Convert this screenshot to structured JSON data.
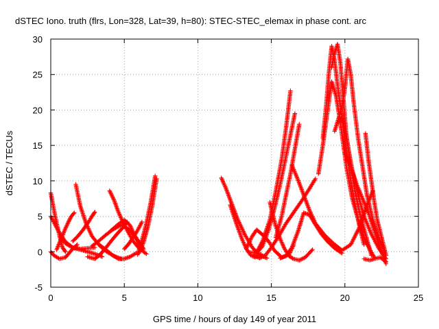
{
  "chart_data": {
    "type": "scatter",
    "title": "dSTEC Iono. truth (flrs, Lon=328, Lat=39, h=80): STEC-STEC_elemax in phase cont. arc",
    "xlabel": "GPS time / hours of day 149 of year 2011",
    "ylabel": "dSTEC  / TECUs",
    "xlim": [
      0,
      25
    ],
    "ylim": [
      -5,
      30
    ],
    "xticks": [
      0,
      5,
      10,
      15,
      20,
      25
    ],
    "yticks": [
      -5,
      0,
      5,
      10,
      15,
      20,
      25,
      30
    ],
    "grid": true,
    "legend": "none",
    "marker": "+",
    "color": "#ff0000",
    "series": [
      {
        "x": [
          0.0,
          0.3,
          0.6,
          0.8,
          1.0
        ],
        "y": [
          8.3,
          5.0,
          2.2,
          0.6,
          0.0
        ]
      },
      {
        "x": [
          0.0,
          0.5,
          1.0,
          1.5,
          2.0,
          2.5,
          3.0
        ],
        "y": [
          5.0,
          3.0,
          1.4,
          0.6,
          0.4,
          0.5,
          0.6
        ]
      },
      {
        "x": [
          0.0,
          0.2,
          0.6,
          1.0,
          1.4,
          1.8
        ],
        "y": [
          0.0,
          -0.5,
          -1.0,
          -0.8,
          0.2,
          1.0
        ]
      },
      {
        "x": [
          0.4,
          0.7,
          1.0,
          1.2,
          1.4,
          1.6
        ],
        "y": [
          0.3,
          1.8,
          3.3,
          4.2,
          5.0,
          5.5
        ]
      },
      {
        "x": [
          0.7,
          1.0,
          1.3,
          1.6,
          2.0,
          2.5,
          3.0,
          3.5
        ],
        "y": [
          2.0,
          1.2,
          0.8,
          0.5,
          0.3,
          0.0,
          -0.3,
          -0.7
        ]
      },
      {
        "x": [
          1.7,
          2.0,
          2.4,
          2.8,
          3.3,
          3.8,
          4.3,
          4.8
        ],
        "y": [
          9.5,
          6.5,
          4.0,
          2.2,
          0.9,
          0.0,
          -0.6,
          -1.0
        ]
      },
      {
        "x": [
          1.5,
          1.8,
          2.2,
          2.6,
          2.8,
          3.0
        ],
        "y": [
          1.5,
          2.1,
          3.1,
          4.3,
          5.0,
          5.6
        ]
      },
      {
        "x": [
          2.5,
          3.0,
          3.4,
          3.8,
          4.1,
          4.5,
          4.9,
          5.2
        ],
        "y": [
          -0.7,
          -1.0,
          -0.3,
          0.7,
          1.5,
          2.5,
          3.4,
          4.2
        ]
      },
      {
        "x": [
          2.8,
          3.2,
          3.7,
          4.2,
          4.8,
          5.3,
          5.8,
          6.3
        ],
        "y": [
          0.8,
          1.4,
          2.3,
          3.1,
          3.8,
          3.2,
          2.0,
          0.3
        ]
      },
      {
        "x": [
          4.0,
          4.3,
          4.6,
          4.9,
          5.2,
          5.6,
          6.0,
          6.5
        ],
        "y": [
          8.6,
          7.3,
          5.6,
          4.2,
          3.0,
          1.5,
          0.5,
          -0.3
        ]
      },
      {
        "x": [
          3.3,
          3.8,
          4.2,
          4.6,
          5.0,
          5.4,
          5.8
        ],
        "y": [
          1.0,
          0.2,
          -0.5,
          -1.0,
          -1.0,
          -0.7,
          -0.2
        ]
      },
      {
        "x": [
          4.1,
          4.6,
          5.0,
          5.4,
          5.7,
          6.0,
          6.3
        ],
        "y": [
          3.0,
          3.9,
          4.5,
          3.7,
          2.3,
          1.2,
          0.5
        ]
      },
      {
        "x": [
          5.0,
          5.3,
          5.6,
          5.9,
          6.2
        ],
        "y": [
          0.4,
          1.1,
          2.0,
          3.0,
          4.2
        ]
      },
      {
        "x": [
          5.9,
          6.2,
          6.5,
          6.8,
          7.1
        ],
        "y": [
          -0.4,
          1.6,
          4.0,
          7.0,
          10.7
        ]
      },
      {
        "x": [
          6.0,
          6.3,
          6.6,
          6.9,
          7.2
        ],
        "y": [
          -0.2,
          1.3,
          3.5,
          6.5,
          10.3
        ]
      },
      {
        "x": [
          11.6,
          11.9,
          12.3,
          12.7,
          13.2,
          13.7,
          14.2,
          14.7
        ],
        "y": [
          10.4,
          9.0,
          6.8,
          4.6,
          2.4,
          0.6,
          -0.5,
          -0.9
        ]
      },
      {
        "x": [
          12.2,
          12.6,
          13.0,
          13.3,
          13.6,
          13.9,
          14.3
        ],
        "y": [
          6.6,
          4.1,
          1.8,
          0.4,
          -0.5,
          -0.8,
          -0.3
        ]
      },
      {
        "x": [
          13.3,
          13.7,
          14.0,
          14.4,
          14.8,
          15.2,
          15.7,
          16.2,
          16.5
        ],
        "y": [
          0.5,
          2.2,
          3.1,
          2.4,
          1.5,
          0.2,
          -0.8,
          -0.4,
          0.9
        ]
      },
      {
        "x": [
          13.8,
          14.2,
          14.6,
          15.0,
          15.5,
          16.0,
          16.5,
          17.0,
          17.5,
          18.0
        ],
        "y": [
          -0.5,
          -0.9,
          -0.5,
          0.6,
          2.2,
          4.0,
          5.5,
          7.0,
          8.6,
          10.3
        ]
      },
      {
        "x": [
          13.5,
          14.0,
          14.4,
          14.9,
          15.3,
          15.7,
          16.0,
          16.3
        ],
        "y": [
          -0.1,
          -0.1,
          1.5,
          4.5,
          8.5,
          13.0,
          17.5,
          22.7
        ]
      },
      {
        "x": [
          14.0,
          14.4,
          14.8,
          15.2,
          15.6,
          16.0,
          16.3,
          16.6
        ],
        "y": [
          -0.2,
          0.8,
          3.0,
          6.0,
          9.5,
          13.5,
          16.5,
          19.5
        ]
      },
      {
        "x": [
          14.9,
          15.1,
          15.3,
          15.6,
          15.9,
          16.2,
          16.5,
          16.9,
          17.3,
          17.8
        ],
        "y": [
          7.0,
          5.2,
          3.6,
          1.8,
          0.4,
          -0.6,
          -1.0,
          -1.2,
          -0.8,
          0.3
        ]
      },
      {
        "x": [
          15.3,
          15.7,
          16.0,
          16.3,
          16.6,
          16.9
        ],
        "y": [
          2.0,
          5.0,
          8.0,
          11.0,
          14.5,
          18.0
        ]
      },
      {
        "x": [
          15.6,
          16.0,
          16.4,
          16.8,
          17.2,
          17.6,
          18.0,
          18.4,
          18.8,
          19.3,
          19.8
        ],
        "y": [
          -0.9,
          -0.6,
          0.6,
          2.8,
          5.5,
          5.2,
          3.8,
          2.5,
          1.5,
          0.5,
          -0.2
        ]
      },
      {
        "x": [
          16.4,
          16.8,
          17.2,
          17.6,
          18.0,
          18.6,
          19.2,
          19.8,
          20.4,
          21.0,
          21.5,
          21.9
        ],
        "y": [
          12.2,
          10.2,
          8.0,
          5.8,
          4.0,
          2.4,
          1.2,
          0.2,
          1.0,
          3.5,
          6.5,
          8.6
        ]
      },
      {
        "x": [
          18.2,
          18.5,
          18.8,
          19.1,
          19.4,
          19.7,
          20.1,
          20.5,
          20.9,
          21.3,
          21.7,
          22.0
        ],
        "y": [
          11.0,
          15.0,
          19.5,
          24.0,
          22.0,
          18.0,
          12.0,
          7.5,
          4.5,
          2.0,
          0.3,
          -0.8
        ]
      },
      {
        "x": [
          18.5,
          18.7,
          18.9,
          19.1,
          19.3,
          19.5,
          19.8,
          20.1,
          20.4,
          20.7,
          21.0,
          21.3
        ],
        "y": [
          16.0,
          20.0,
          25.0,
          29.0,
          27.0,
          23.5,
          19.0,
          14.5,
          10.0,
          6.5,
          3.5,
          1.0
        ]
      },
      {
        "x": [
          19.1,
          19.3,
          19.5,
          19.7,
          19.9,
          20.1,
          20.4,
          20.7,
          21.0,
          21.4,
          21.8
        ],
        "y": [
          26.0,
          28.0,
          29.3,
          26.5,
          21.5,
          16.5,
          12.0,
          8.5,
          5.5,
          2.5,
          -0.5
        ]
      },
      {
        "x": [
          19.3,
          19.6,
          19.9,
          20.2,
          20.5,
          20.9,
          21.3,
          21.8,
          22.3,
          22.8
        ],
        "y": [
          17.0,
          19.0,
          18.2,
          15.0,
          11.5,
          8.0,
          5.0,
          2.5,
          0.5,
          -1.0
        ]
      },
      {
        "x": [
          19.6,
          19.8,
          20.0,
          20.2,
          20.4,
          20.6,
          20.9,
          21.2,
          21.5,
          21.9,
          22.3,
          22.7
        ],
        "y": [
          19.0,
          20.5,
          23.0,
          27.2,
          25.0,
          21.0,
          16.0,
          12.0,
          8.0,
          4.5,
          2.0,
          0.0
        ]
      },
      {
        "x": [
          20.0,
          20.4,
          20.8,
          21.2,
          21.6,
          22.0,
          22.4,
          22.8
        ],
        "y": [
          14.0,
          12.0,
          9.5,
          7.5,
          5.5,
          3.0,
          0.5,
          -1.7
        ]
      },
      {
        "x": [
          21.4,
          21.6,
          21.8,
          22.0,
          22.2,
          22.5,
          22.8
        ],
        "y": [
          16.7,
          13.0,
          10.0,
          7.0,
          4.5,
          2.0,
          -0.5
        ]
      },
      {
        "x": [
          21.3,
          21.7,
          22.0,
          22.4,
          22.8
        ],
        "y": [
          -1.0,
          -1.2,
          -1.0,
          -0.8,
          -1.4
        ]
      }
    ]
  }
}
